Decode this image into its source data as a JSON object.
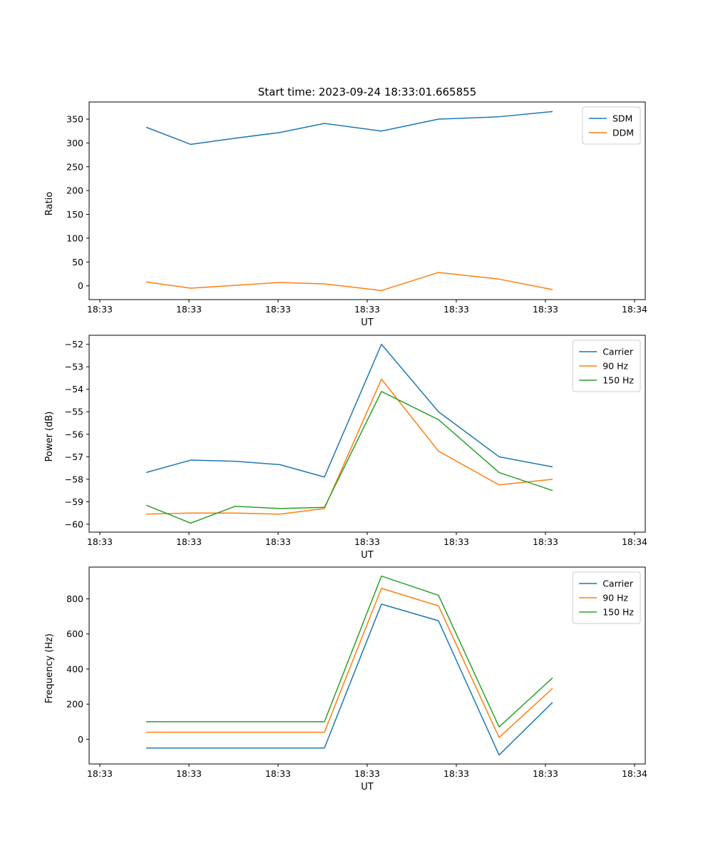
{
  "figure": {
    "title": "Start time: 2023-09-24 18:33:01.665855",
    "background": "#ffffff",
    "text_color": "#000000",
    "axis_color": "#000000",
    "legend_border_color": "#cccccc"
  },
  "chart_data": [
    {
      "type": "line",
      "title": "",
      "xlabel": "UT",
      "ylabel": "Ratio",
      "grid": false,
      "legend_position": "upper-right",
      "xlim": [
        -0.12,
        6.12
      ],
      "ylim": [
        -29,
        386
      ],
      "x_tick_values": [
        0,
        1,
        2,
        3,
        4,
        5,
        6
      ],
      "x_tick_labels": [
        "18:33",
        "18:33",
        "18:33",
        "18:33",
        "18:33",
        "18:33",
        "18:34"
      ],
      "y_tick_values": [
        0,
        50,
        100,
        150,
        200,
        250,
        300,
        350
      ],
      "y_tick_labels": [
        "0",
        "50",
        "100",
        "150",
        "200",
        "250",
        "300",
        "350"
      ],
      "x": [
        0.52,
        1.02,
        1.52,
        2.02,
        2.52,
        3.16,
        3.8,
        4.48,
        5.08
      ],
      "series": [
        {
          "name": "SDM",
          "color": "#1f77b4",
          "values": [
            333,
            297,
            310,
            322,
            341,
            325,
            350,
            355,
            366
          ]
        },
        {
          "name": "DDM",
          "color": "#ff7f0e",
          "values": [
            8,
            -5,
            1,
            7,
            4,
            -10,
            28,
            14,
            -8
          ]
        }
      ]
    },
    {
      "type": "line",
      "title": "",
      "xlabel": "UT",
      "ylabel": "Power (dB)",
      "grid": false,
      "legend_position": "upper-right",
      "xlim": [
        -0.12,
        6.12
      ],
      "ylim": [
        -60.35,
        -51.6
      ],
      "x_tick_values": [
        0,
        1,
        2,
        3,
        4,
        5,
        6
      ],
      "x_tick_labels": [
        "18:33",
        "18:33",
        "18:33",
        "18:33",
        "18:33",
        "18:33",
        "18:34"
      ],
      "y_tick_values": [
        -52,
        -53,
        -54,
        -55,
        -56,
        -57,
        -58,
        -59,
        -60
      ],
      "y_tick_labels": [
        "−52",
        "−53",
        "−54",
        "−55",
        "−56",
        "−57",
        "−58",
        "−59",
        "−60"
      ],
      "x": [
        0.52,
        1.02,
        1.52,
        2.02,
        2.52,
        3.16,
        3.8,
        4.48,
        5.08
      ],
      "series": [
        {
          "name": "Carrier",
          "color": "#1f77b4",
          "values": [
            -57.7,
            -57.15,
            -57.2,
            -57.35,
            -57.9,
            -52.0,
            -55.0,
            -57.0,
            -57.45
          ]
        },
        {
          "name": "90 Hz",
          "color": "#ff7f0e",
          "values": [
            -59.55,
            -59.5,
            -59.5,
            -59.55,
            -59.3,
            -53.55,
            -56.75,
            -58.25,
            -58.0
          ]
        },
        {
          "name": "150 Hz",
          "color": "#2ca02c",
          "values": [
            -59.15,
            -59.95,
            -59.2,
            -59.3,
            -59.25,
            -54.1,
            -55.35,
            -57.7,
            -58.5
          ]
        }
      ]
    },
    {
      "type": "line",
      "title": "",
      "xlabel": "UT",
      "ylabel": "Frequency (Hz)",
      "grid": false,
      "legend_position": "upper-right",
      "xlim": [
        -0.12,
        6.12
      ],
      "ylim": [
        -141,
        981
      ],
      "x_tick_values": [
        0,
        1,
        2,
        3,
        4,
        5,
        6
      ],
      "x_tick_labels": [
        "18:33",
        "18:33",
        "18:33",
        "18:33",
        "18:33",
        "18:33",
        "18:34"
      ],
      "y_tick_values": [
        0,
        200,
        400,
        600,
        800
      ],
      "y_tick_labels": [
        "0",
        "200",
        "400",
        "600",
        "800"
      ],
      "x": [
        0.52,
        1.02,
        1.52,
        2.02,
        2.52,
        3.16,
        3.8,
        4.48,
        5.08
      ],
      "series": [
        {
          "name": "Carrier",
          "color": "#1f77b4",
          "values": [
            -50,
            -50,
            -50,
            -50,
            -50,
            770,
            675,
            -90,
            210
          ]
        },
        {
          "name": "90 Hz",
          "color": "#ff7f0e",
          "values": [
            40,
            40,
            40,
            40,
            40,
            860,
            760,
            10,
            290
          ]
        },
        {
          "name": "150 Hz",
          "color": "#2ca02c",
          "values": [
            100,
            100,
            100,
            100,
            100,
            930,
            820,
            70,
            350
          ]
        }
      ]
    }
  ]
}
